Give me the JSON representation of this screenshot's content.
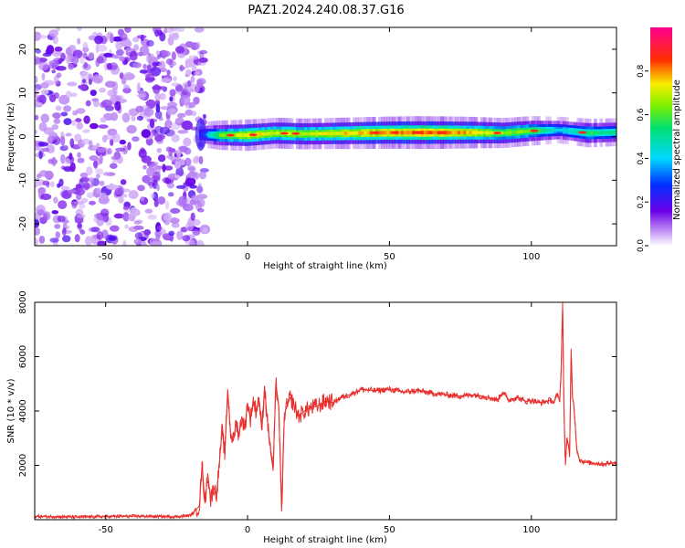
{
  "title": "PAZ1.2024.240.08.37.G16",
  "chart_data": [
    {
      "type": "heatmap",
      "title": "PAZ1.2024.240.08.37.G16",
      "xlabel": "Height of straight line (km)",
      "ylabel": "Frequency (Hz)",
      "xlim": [
        -75,
        130
      ],
      "ylim": [
        -25,
        25
      ],
      "xticks": [
        -50,
        0,
        50,
        100
      ],
      "yticks": [
        -20,
        -10,
        0,
        10,
        20
      ],
      "colorbar": {
        "label": "Normalized spectral amplitude",
        "range": [
          0,
          1
        ],
        "ticks": [
          "0.0",
          "0.2",
          "0.4",
          "0.6",
          "0.8"
        ],
        "colormap": "rainbow (white-violet-blue-cyan-green-yellow-red-magenta)"
      },
      "ridge": {
        "description": "Dominant frequency ridge near 1 Hz with high amplitude from about -18 km to 130 km; scattered low-amplitude noise below about -18 km",
        "x": [
          -17,
          -10,
          0,
          10,
          20,
          30,
          40,
          50,
          60,
          70,
          80,
          90,
          100,
          110,
          120,
          130
        ],
        "frequency_hz": [
          0.5,
          0.3,
          0.3,
          0.8,
          0.6,
          0.7,
          0.8,
          0.9,
          0.9,
          0.9,
          0.9,
          0.8,
          1.3,
          1.5,
          0.8,
          1.0
        ],
        "amplitude": [
          0.25,
          0.6,
          0.75,
          0.7,
          0.7,
          0.72,
          0.78,
          0.8,
          0.85,
          0.82,
          0.75,
          0.65,
          0.62,
          0.4,
          0.55,
          0.5
        ]
      },
      "noise_region": [
        -75,
        -18
      ]
    },
    {
      "type": "line",
      "xlabel": "Height of straight line (km)",
      "ylabel": "SNR (10 * v/v)",
      "xlim": [
        -75,
        130
      ],
      "ylim": [
        0,
        8000
      ],
      "xticks": [
        -50,
        0,
        50,
        100
      ],
      "yticks": [
        2000,
        4000,
        6000,
        8000
      ],
      "color": "#e8302e",
      "series": [
        {
          "x": [
            -75,
            -60,
            -40,
            -25,
            -20,
            -17,
            -16,
            -15,
            -14,
            -13,
            -12,
            -11,
            -10,
            -9,
            -8,
            -7,
            -6,
            -5,
            -4,
            -3,
            -2,
            -1,
            0,
            1,
            2,
            3,
            4,
            5,
            6,
            7,
            8,
            9,
            10,
            11,
            12,
            13,
            14,
            15,
            16,
            18,
            20,
            22,
            25,
            28,
            30,
            33,
            36,
            40,
            45,
            50,
            55,
            60,
            65,
            70,
            75,
            80,
            85,
            88,
            90,
            92,
            95,
            98,
            100,
            103,
            105,
            107,
            108,
            109,
            110,
            110.5,
            111,
            111.5,
            112,
            112.5,
            113,
            113.5,
            114,
            114.5,
            115,
            116,
            117,
            118,
            120,
            125,
            130
          ],
          "y": [
            120,
            100,
            130,
            110,
            160,
            500,
            2000,
            600,
            1700,
            700,
            1200,
            900,
            2000,
            3300,
            2400,
            4800,
            3200,
            2900,
            3600,
            3100,
            3800,
            3300,
            4300,
            3700,
            4400,
            4000,
            4500,
            3300,
            4900,
            3600,
            2700,
            1800,
            5000,
            4200,
            300,
            3900,
            4200,
            4500,
            4300,
            3800,
            4000,
            4100,
            4200,
            4400,
            4300,
            4500,
            4600,
            4800,
            4750,
            4800,
            4700,
            4750,
            4650,
            4600,
            4550,
            4600,
            4500,
            4400,
            4700,
            4400,
            4500,
            4350,
            4400,
            4300,
            4350,
            4400,
            4300,
            4600,
            4400,
            5500,
            8000,
            4000,
            2000,
            3000,
            2800,
            2300,
            6300,
            4500,
            4200,
            2600,
            2200,
            2150,
            2100,
            2050,
            2100
          ]
        }
      ]
    }
  ]
}
